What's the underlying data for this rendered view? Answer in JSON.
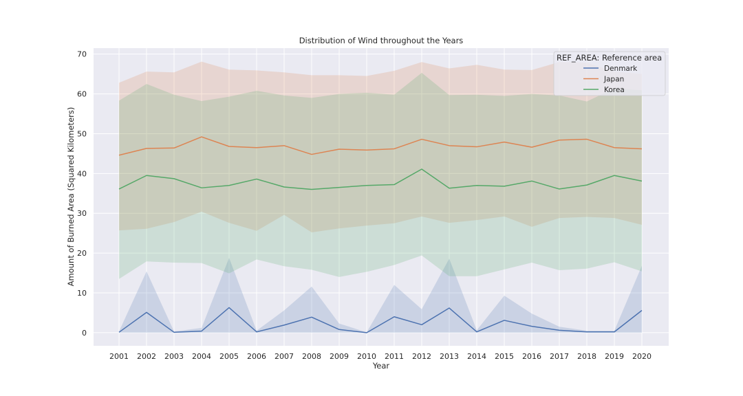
{
  "chart_data": {
    "type": "line",
    "title": "Distribution of Wind throughout the Years",
    "xlabel": "Year",
    "ylabel": "Amount of Burned Area (Squared Kilometers)",
    "categories": [
      "2001",
      "2002",
      "2003",
      "2004",
      "2005",
      "2006",
      "2007",
      "2008",
      "2009",
      "2010",
      "2011",
      "2012",
      "2013",
      "2014",
      "2015",
      "2016",
      "2017",
      "2018",
      "2019",
      "2020"
    ],
    "ylim": [
      -3.3,
      71.5
    ],
    "yticks": [
      0,
      10,
      20,
      30,
      40,
      50,
      60,
      70
    ],
    "grid": true,
    "legend": {
      "title": "REF_AREA: Reference area",
      "position": "top-right"
    },
    "series": [
      {
        "name": "Denmark",
        "color": "#4c72b0",
        "values": [
          0.1,
          5.1,
          0.1,
          0.4,
          6.3,
          0.2,
          1.9,
          3.9,
          0.8,
          0.0,
          4.0,
          2.0,
          6.2,
          0.2,
          3.1,
          1.6,
          0.6,
          0.2,
          0.2,
          5.6
        ],
        "lower": [
          0,
          0,
          0,
          0,
          0,
          0,
          0,
          0,
          0,
          0,
          0,
          0,
          0,
          0,
          0,
          0,
          0,
          0,
          0,
          0
        ],
        "upper": [
          0.3,
          15.4,
          0.3,
          1.2,
          18.8,
          0.5,
          5.6,
          11.6,
          2.3,
          0.1,
          12.0,
          5.9,
          18.6,
          0.6,
          9.3,
          4.8,
          1.5,
          0.5,
          0.5,
          16.8
        ]
      },
      {
        "name": "Japan",
        "color": "#dd8452",
        "values": [
          44.6,
          46.3,
          46.4,
          49.2,
          46.8,
          46.5,
          47.0,
          44.8,
          46.1,
          45.9,
          46.2,
          48.6,
          47.0,
          46.7,
          47.9,
          46.6,
          48.4,
          48.6,
          46.5,
          46.2
        ],
        "lower": [
          25.7,
          26.1,
          27.8,
          30.4,
          27.6,
          25.6,
          29.6,
          25.2,
          26.2,
          26.9,
          27.5,
          29.2,
          27.6,
          28.3,
          29.2,
          26.6,
          28.8,
          29.1,
          28.8,
          27.1
        ],
        "upper": [
          62.8,
          65.6,
          65.4,
          68.1,
          66.1,
          65.9,
          65.4,
          64.7,
          64.7,
          64.5,
          65.8,
          68.0,
          66.4,
          67.3,
          66.1,
          66.0,
          68.0,
          67.8,
          65.6,
          65.0
        ]
      },
      {
        "name": "Korea",
        "color": "#55a868",
        "values": [
          36.1,
          39.5,
          38.7,
          36.4,
          37.0,
          38.6,
          36.6,
          36.0,
          36.5,
          37.0,
          37.2,
          41.1,
          36.3,
          37.0,
          36.8,
          38.1,
          36.1,
          37.1,
          39.5,
          38.1
        ],
        "lower": [
          13.5,
          17.9,
          17.6,
          17.5,
          14.9,
          18.4,
          16.7,
          15.8,
          14.0,
          15.3,
          17.0,
          19.4,
          14.2,
          14.2,
          15.9,
          17.6,
          15.7,
          16.1,
          17.7,
          15.4
        ],
        "upper": [
          58.3,
          62.5,
          59.8,
          58.2,
          59.3,
          60.8,
          59.6,
          59.0,
          60.0,
          60.3,
          59.8,
          65.3,
          59.7,
          59.8,
          59.5,
          60.0,
          59.6,
          58.1,
          61.4,
          60.9
        ]
      }
    ]
  }
}
